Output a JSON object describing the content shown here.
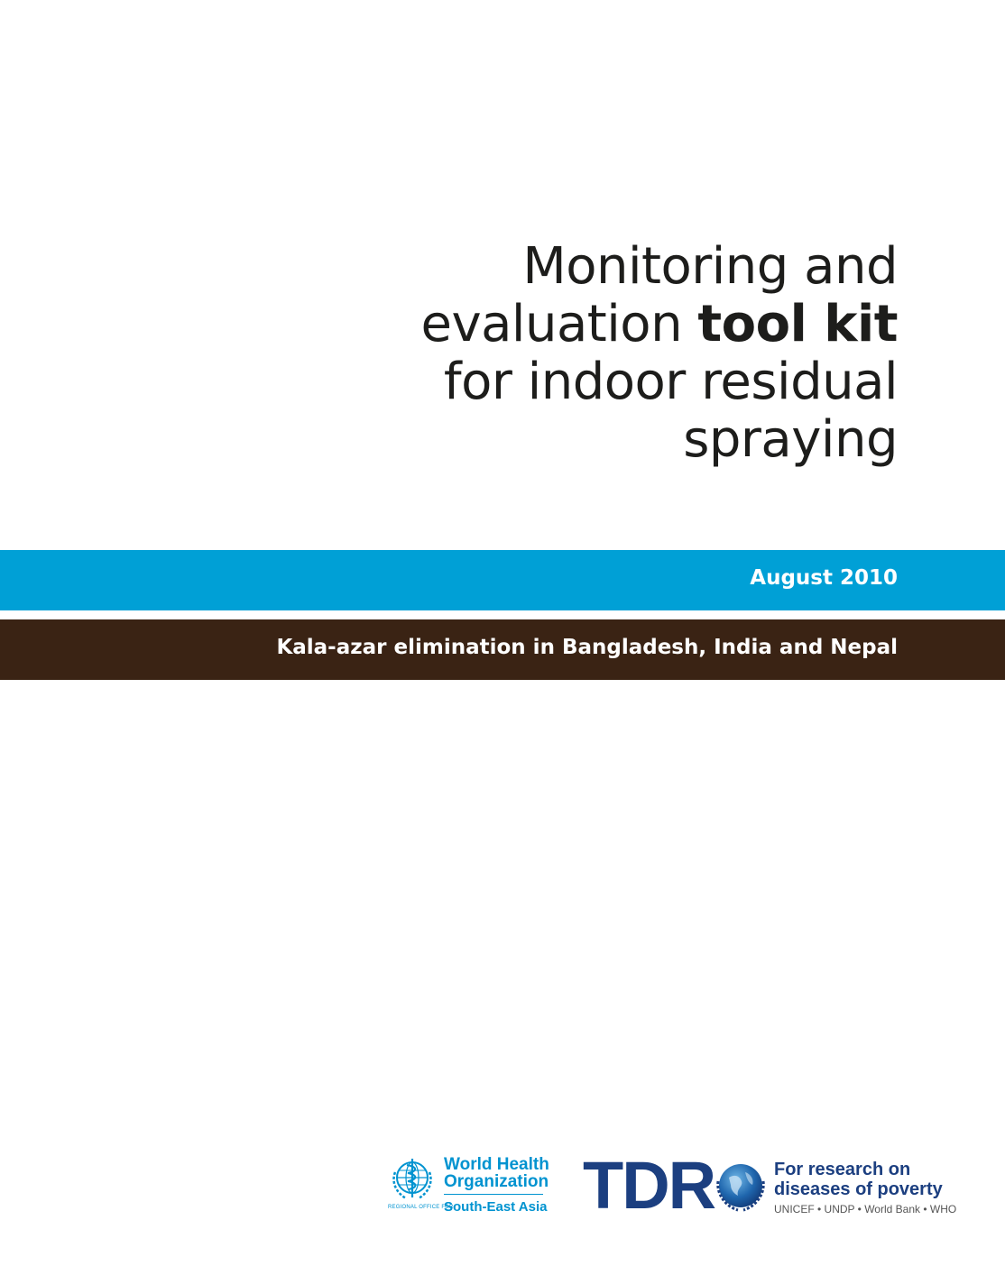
{
  "title": {
    "line1": "Monitoring and",
    "line2_regular": "evaluation ",
    "line2_bold": "tool kit",
    "line3": "for indoor residual",
    "line4": "spraying"
  },
  "date": "August 2010",
  "subtitle": "Kala-azar elimination in Bangladesh, India and Nepal",
  "who_logo": {
    "name_line1": "World Health",
    "name_line2": "Organization",
    "office_label": "REGIONAL OFFICE FOR",
    "region": "South-East Asia"
  },
  "tdr_logo": {
    "letters": "TDR",
    "tagline_line1": "For research on",
    "tagline_line2": "diseases of poverty",
    "sponsors": "UNICEF • UNDP • World Bank • WHO"
  },
  "colors": {
    "blue_band": "#00a0d6",
    "brown_band": "#3a2314",
    "who_blue": "#0093d0",
    "tdr_navy": "#1c3f80"
  }
}
